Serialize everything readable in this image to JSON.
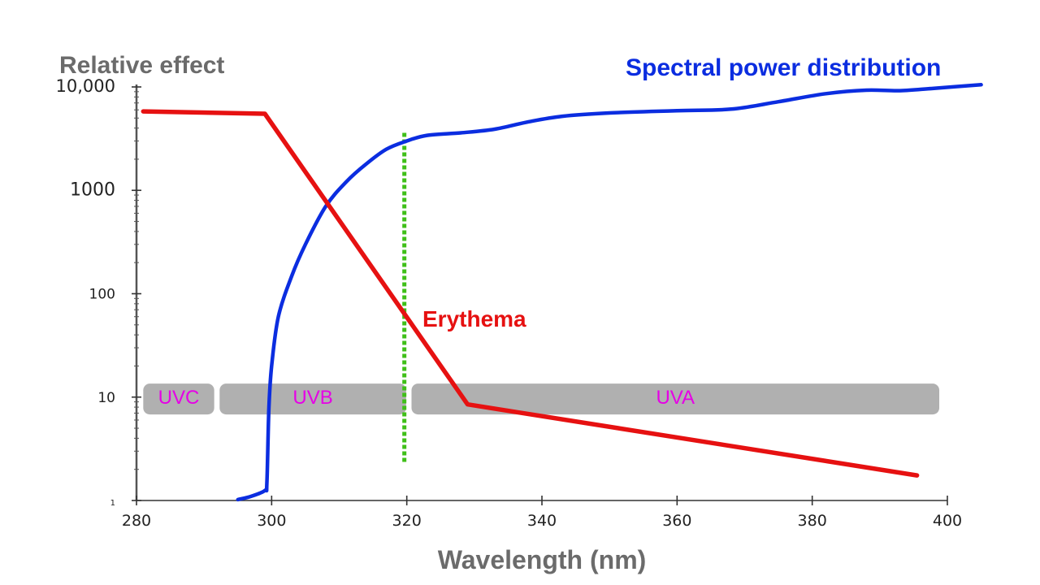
{
  "chart_data": {
    "type": "line",
    "ylabel": "Relative effect",
    "xlabel": "Wavelength (nm)",
    "y_scale": "log",
    "ylim": [
      1,
      10000
    ],
    "xlim": [
      280,
      400
    ],
    "y_ticks": [
      {
        "value": 1,
        "label": "1"
      },
      {
        "value": 10,
        "label": "10"
      },
      {
        "value": 100,
        "label": "100"
      },
      {
        "value": 1000,
        "label": "1000"
      },
      {
        "value": 10000,
        "label": "10,000"
      }
    ],
    "x_ticks": [
      {
        "value": 280,
        "label": "280"
      },
      {
        "value": 300,
        "label": "300"
      },
      {
        "value": 320,
        "label": "320"
      },
      {
        "value": 340,
        "label": "340"
      },
      {
        "value": 360,
        "label": "360"
      },
      {
        "value": 380,
        "label": "380"
      },
      {
        "value": 400,
        "label": "400"
      }
    ],
    "grid": false,
    "series": [
      {
        "name": "Spectral power distribution",
        "color": "#0b2de0",
        "points": [
          [
            295,
            1.02
          ],
          [
            297,
            1.1
          ],
          [
            299,
            1.25
          ],
          [
            299.3,
            1.5
          ],
          [
            299.6,
            8
          ],
          [
            300,
            20
          ],
          [
            301,
            60
          ],
          [
            303,
            150
          ],
          [
            305,
            300
          ],
          [
            308,
            700
          ],
          [
            311,
            1200
          ],
          [
            314,
            1800
          ],
          [
            317,
            2500
          ],
          [
            320,
            3000
          ],
          [
            323,
            3400
          ],
          [
            328,
            3600
          ],
          [
            333,
            3900
          ],
          [
            338,
            4600
          ],
          [
            343,
            5200
          ],
          [
            350,
            5600
          ],
          [
            360,
            5900
          ],
          [
            368,
            6100
          ],
          [
            375,
            7200
          ],
          [
            382,
            8600
          ],
          [
            388,
            9300
          ],
          [
            393,
            9200
          ],
          [
            398,
            9700
          ],
          [
            405,
            10500
          ]
        ]
      },
      {
        "name": "Erythema",
        "color": "#e61111",
        "points": [
          [
            281,
            5800
          ],
          [
            299,
            5500
          ],
          [
            329,
            8.5
          ],
          [
            395.5,
            1.75
          ]
        ]
      }
    ],
    "vline": {
      "x": 320,
      "y_range": [
        2.3,
        3600
      ],
      "color": "#3fbf18",
      "style": "dotted"
    },
    "bands": [
      {
        "label": "UVC",
        "from": 281,
        "to": 291.5
      },
      {
        "label": "UVB",
        "from": 292.3,
        "to": 319.9
      },
      {
        "label": "UVA",
        "from": 320.7,
        "to": 398.8
      }
    ],
    "band_color": "#b0b0b0",
    "band_label_color": "#e600e6",
    "band_y_range": [
      6.8,
      13.5
    ]
  }
}
